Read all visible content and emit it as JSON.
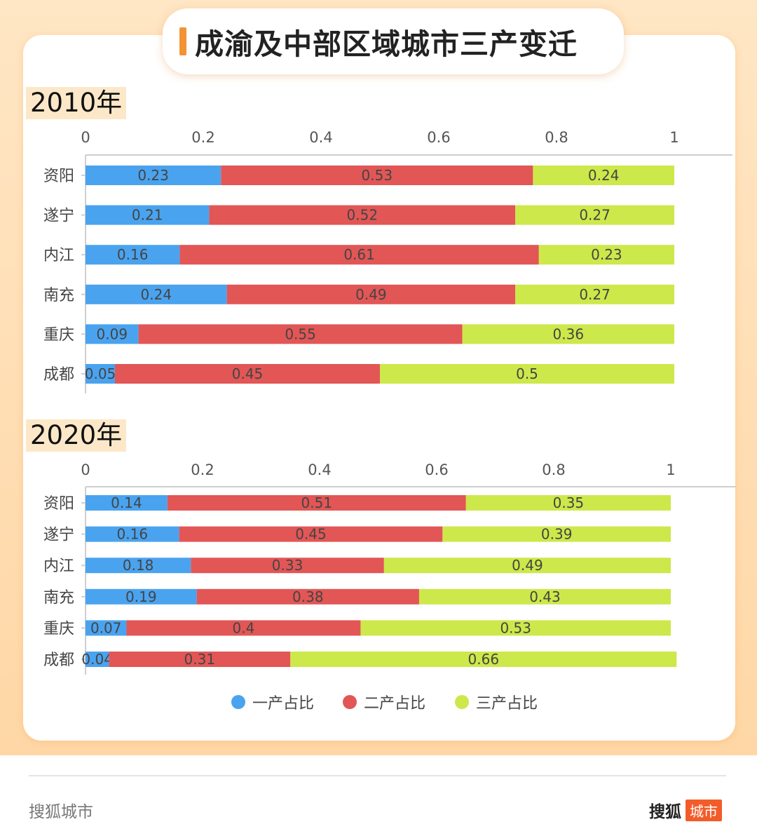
{
  "title": "成渝及中部区域城市三产变迁",
  "footer": {
    "left": "搜狐城市",
    "brand": "搜狐",
    "brand_badge": "城市"
  },
  "colors": {
    "primary": "#4aa3ef",
    "secondary": "#e25656",
    "tertiary": "#cde84a",
    "accent": "#f39434"
  },
  "legend": [
    "一产占比",
    "二产占比",
    "三产占比"
  ],
  "chart_data": [
    {
      "type": "bar",
      "orientation": "horizontal",
      "stacked": true,
      "title": "2010年",
      "categories": [
        "资阳",
        "遂宁",
        "内江",
        "南充",
        "重庆",
        "成都"
      ],
      "series": [
        {
          "name": "一产占比",
          "values": [
            0.23,
            0.21,
            0.16,
            0.24,
            0.09,
            0.05
          ]
        },
        {
          "name": "二产占比",
          "values": [
            0.53,
            0.52,
            0.61,
            0.49,
            0.55,
            0.45
          ]
        },
        {
          "name": "三产占比",
          "values": [
            0.24,
            0.27,
            0.23,
            0.27,
            0.36,
            0.5
          ]
        }
      ],
      "xlim": [
        0,
        1
      ],
      "xticks": [
        "0",
        "0.2",
        "0.4",
        "0.6",
        "0.8",
        "1"
      ],
      "legend_position": "bottom"
    },
    {
      "type": "bar",
      "orientation": "horizontal",
      "stacked": true,
      "title": "2020年",
      "categories": [
        "资阳",
        "遂宁",
        "内江",
        "南充",
        "重庆",
        "成都"
      ],
      "series": [
        {
          "name": "一产占比",
          "values": [
            0.14,
            0.16,
            0.18,
            0.19,
            0.07,
            0.04
          ]
        },
        {
          "name": "二产占比",
          "values": [
            0.51,
            0.45,
            0.33,
            0.38,
            0.4,
            0.31
          ]
        },
        {
          "name": "三产占比",
          "values": [
            0.35,
            0.39,
            0.49,
            0.43,
            0.53,
            0.66
          ]
        }
      ],
      "xlim": [
        0,
        1
      ],
      "xticks": [
        "0",
        "0.2",
        "0.4",
        "0.6",
        "0.8",
        "1"
      ],
      "legend_position": "bottom"
    }
  ]
}
